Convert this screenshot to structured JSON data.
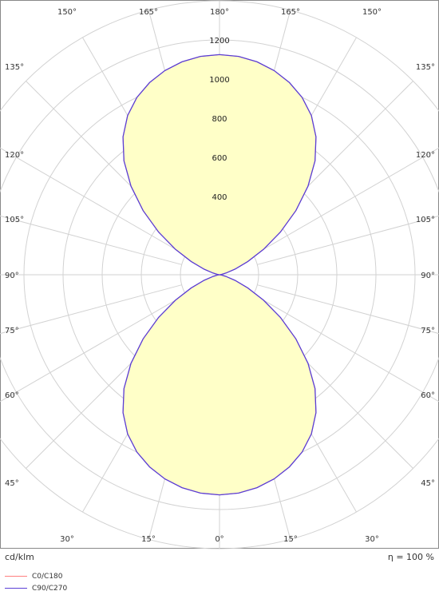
{
  "chart_data": {
    "type": "polar",
    "unit": "cd/klm",
    "efficiency": "η = 100 %",
    "radial_range": [
      0,
      1400
    ],
    "radial_ticks": [
      200,
      400,
      600,
      800,
      1000,
      1200
    ],
    "radial_tick_labels": [
      "400",
      "600",
      "800",
      "1000",
      "1200"
    ],
    "angle_labels_top": [
      "150°",
      "165°",
      "180°",
      "165°",
      "150°"
    ],
    "angle_labels_bottom": [
      "30°",
      "15°",
      "0°",
      "15°",
      "30°"
    ],
    "angle_labels_left": [
      "135°",
      "120°",
      "105°",
      "90°",
      "75°",
      "60°",
      "45°"
    ],
    "angle_labels_right": [
      "135°",
      "120°",
      "105°",
      "90°",
      "75°",
      "60°",
      "45°"
    ],
    "series": [
      {
        "name": "C0/C180",
        "color": "#ff7f7f",
        "angles": [
          0,
          5,
          10,
          15,
          20,
          25,
          30,
          35,
          40,
          45,
          50,
          55,
          60,
          65,
          70,
          75,
          80,
          85,
          90,
          95,
          100,
          105,
          110,
          115,
          120,
          125,
          130,
          135,
          140,
          145,
          150,
          155,
          160,
          165,
          170,
          175,
          180
        ],
        "values": [
          1125,
          1120,
          1105,
          1080,
          1045,
          1000,
          940,
          860,
          760,
          640,
          510,
          380,
          260,
          160,
          85,
          35,
          10,
          3,
          0,
          3,
          10,
          35,
          85,
          160,
          260,
          380,
          510,
          640,
          760,
          860,
          940,
          1000,
          1045,
          1080,
          1105,
          1120,
          1125
        ]
      },
      {
        "name": "C90/C270",
        "color": "#5a3fd6",
        "angles": [
          0,
          5,
          10,
          15,
          20,
          25,
          30,
          35,
          40,
          45,
          50,
          55,
          60,
          65,
          70,
          75,
          80,
          85,
          90,
          95,
          100,
          105,
          110,
          115,
          120,
          125,
          130,
          135,
          140,
          145,
          150,
          155,
          160,
          165,
          170,
          175,
          180
        ],
        "values": [
          1125,
          1120,
          1105,
          1080,
          1045,
          1000,
          940,
          860,
          760,
          640,
          510,
          380,
          260,
          160,
          85,
          35,
          10,
          3,
          0,
          3,
          10,
          35,
          85,
          160,
          260,
          380,
          510,
          640,
          760,
          860,
          940,
          1000,
          1045,
          1080,
          1105,
          1120,
          1125
        ]
      }
    ],
    "fill_color": "#ffffc8",
    "grid": true
  }
}
